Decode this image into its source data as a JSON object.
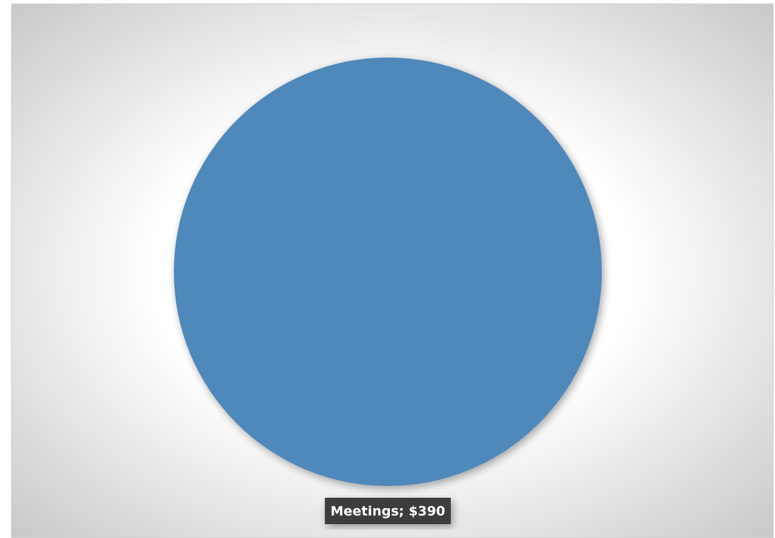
{
  "chart_data": {
    "type": "pie",
    "values": [
      390
    ],
    "value_labels": [
      "Meetings; $390"
    ],
    "colors": [
      "#4f88bb"
    ]
  }
}
